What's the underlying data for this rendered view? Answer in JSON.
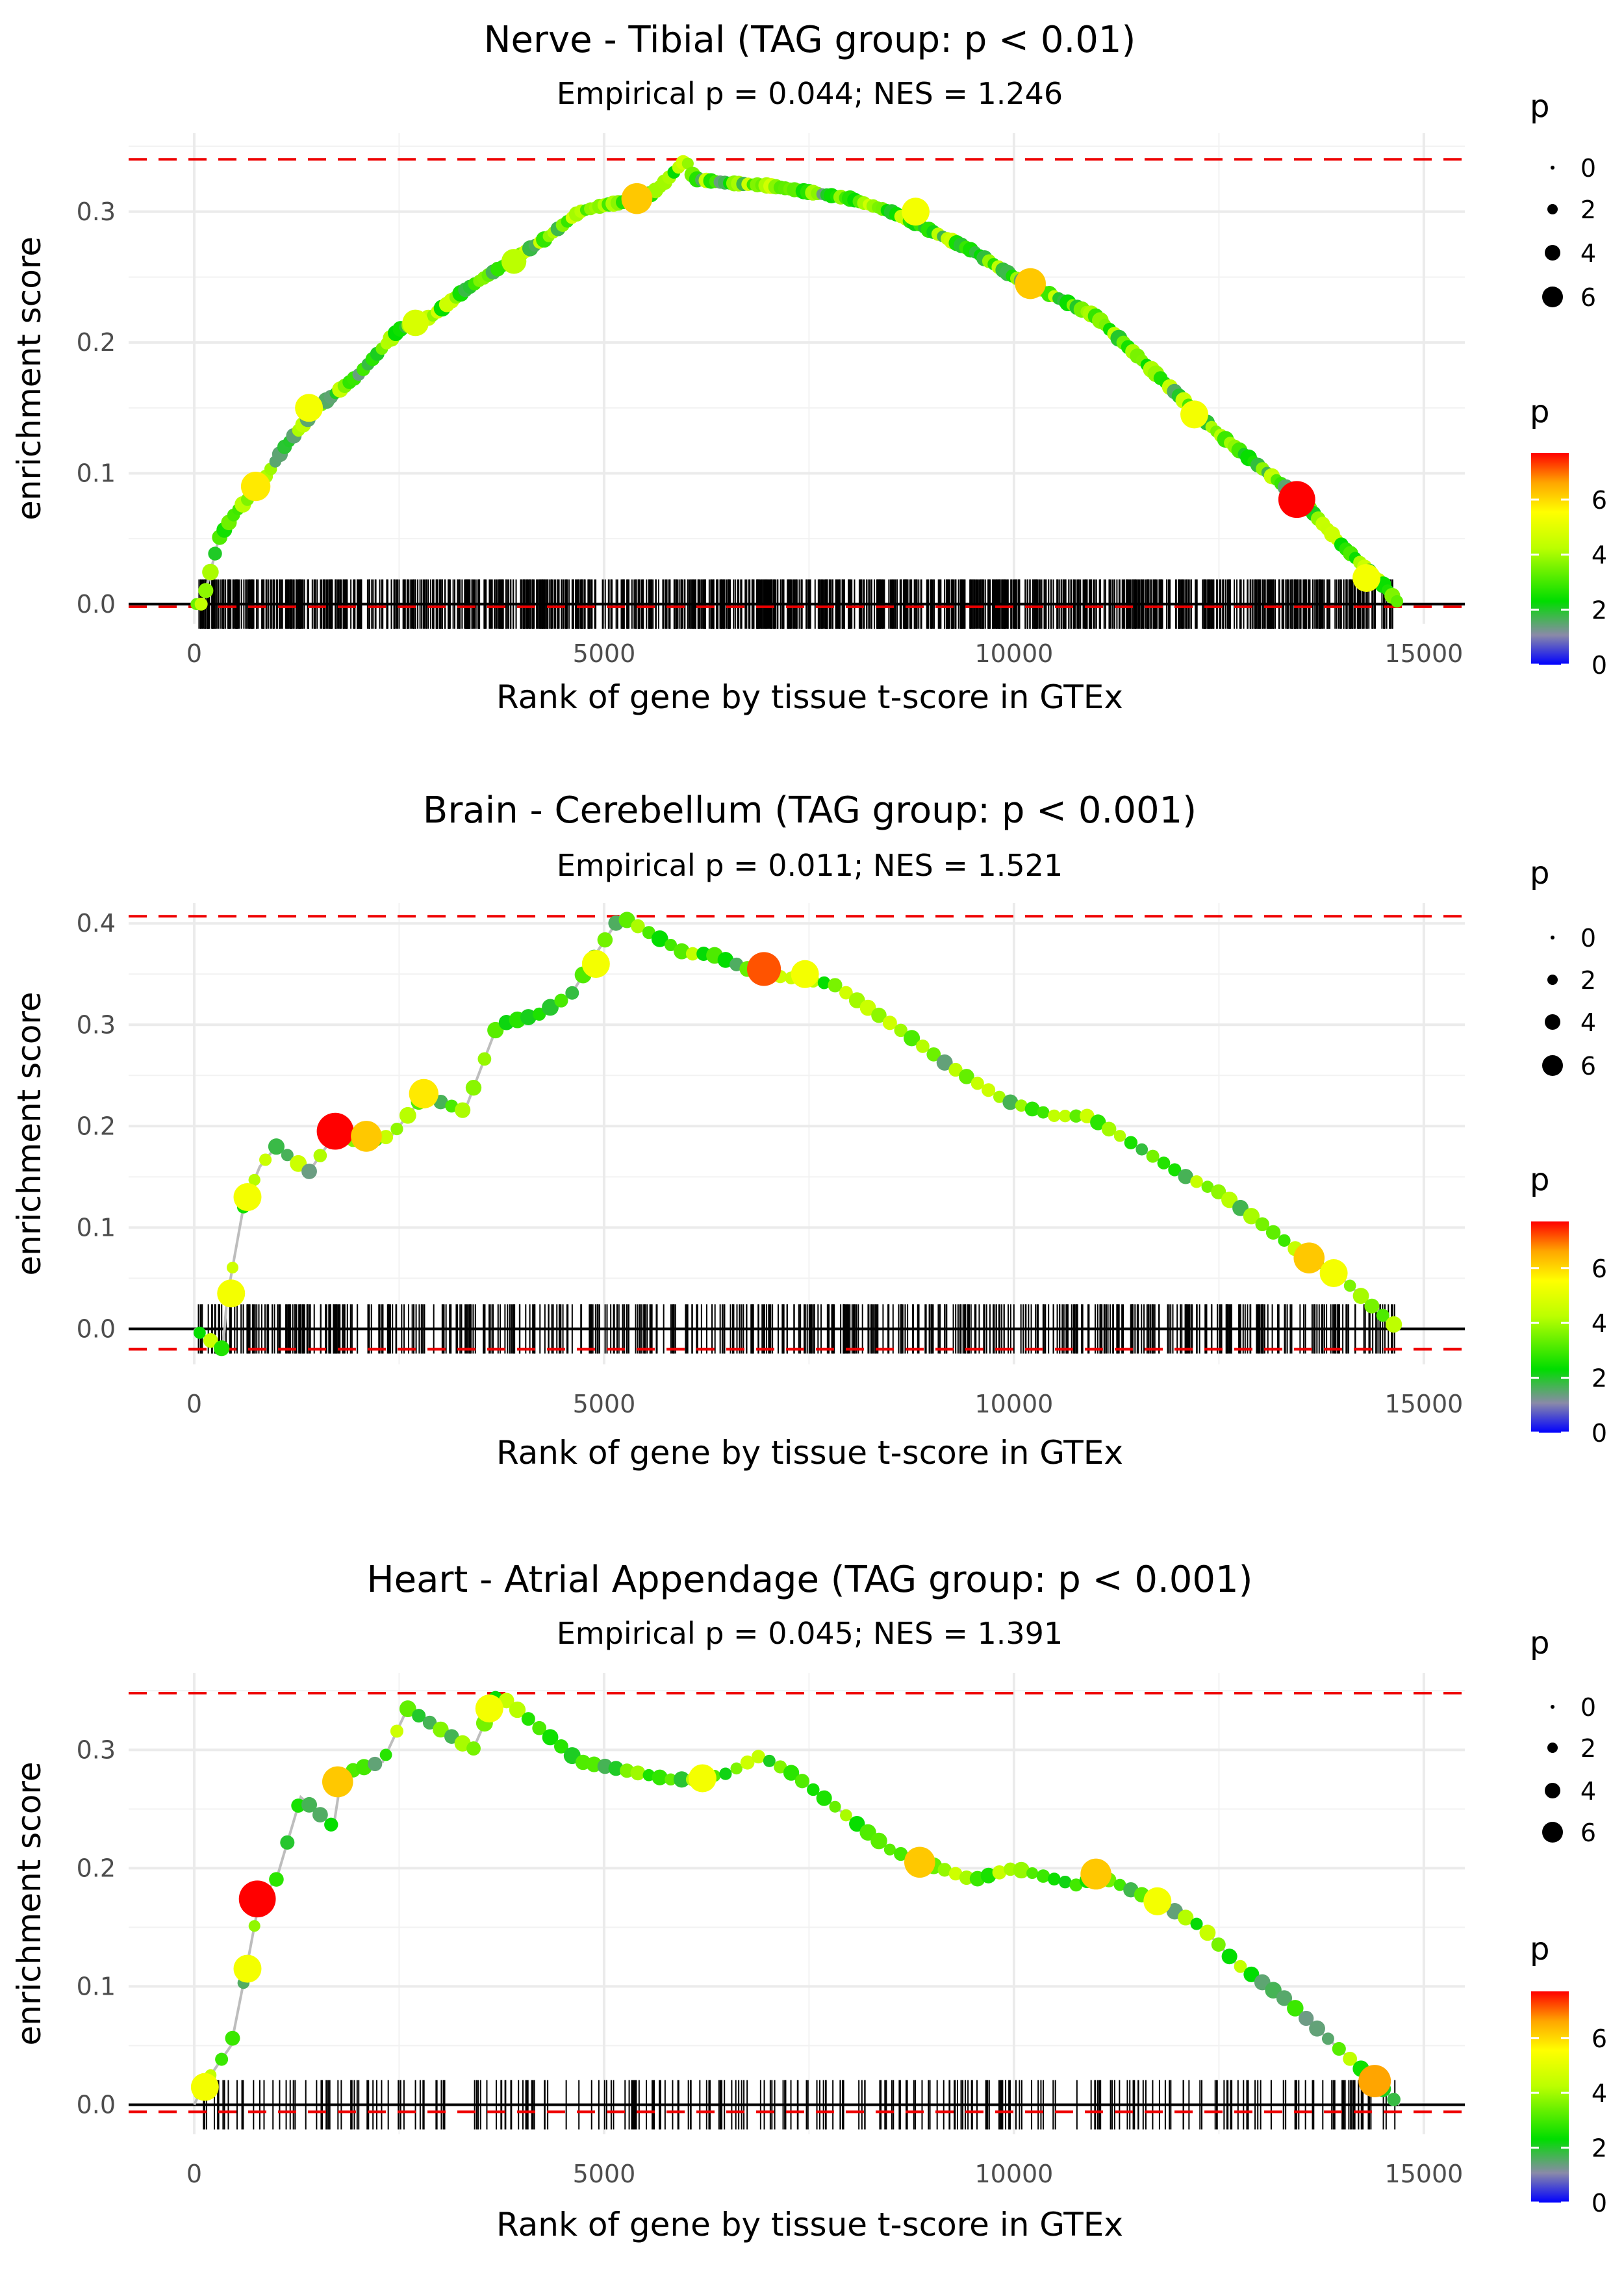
{
  "chart_data": [
    {
      "type": "line",
      "title": "Nerve - Tibial (TAG group: p < 0.01)",
      "subtitle": "Empirical p = 0.044; NES = 1.246",
      "xlabel": "Rank of gene by tissue t-score in GTEx",
      "ylabel": "enrichment score",
      "xlim": [
        -800,
        15500
      ],
      "ylim": [
        -0.015,
        0.36
      ],
      "xticks": [
        0,
        5000,
        10000,
        15000
      ],
      "xtick_labels": [
        "0",
        "5000",
        "10000",
        "15000"
      ],
      "yticks": [
        0.0,
        0.1,
        0.2,
        0.3
      ],
      "ytick_labels": [
        "0.0",
        "0.1",
        "0.2",
        "0.3"
      ],
      "max_es": 0.34,
      "min_es": -0.002,
      "n_genes": 14700,
      "curve": [
        [
          0,
          0
        ],
        [
          100,
          0
        ],
        [
          300,
          0.05
        ],
        [
          500,
          0.07
        ],
        [
          800,
          0.09
        ],
        [
          1100,
          0.12
        ],
        [
          1500,
          0.15
        ],
        [
          2000,
          0.175
        ],
        [
          2500,
          0.21
        ],
        [
          2900,
          0.22
        ],
        [
          3300,
          0.24
        ],
        [
          3800,
          0.26
        ],
        [
          4300,
          0.28
        ],
        [
          4700,
          0.3
        ],
        [
          5000,
          0.305
        ],
        [
          5500,
          0.31
        ],
        [
          5700,
          0.32
        ],
        [
          6000,
          0.34
        ],
        [
          6100,
          0.325
        ],
        [
          6500,
          0.322
        ],
        [
          7000,
          0.32
        ],
        [
          7500,
          0.315
        ],
        [
          8000,
          0.31
        ],
        [
          8500,
          0.3
        ],
        [
          9000,
          0.285
        ],
        [
          9500,
          0.27
        ],
        [
          10000,
          0.25
        ],
        [
          10500,
          0.235
        ],
        [
          11000,
          0.22
        ],
        [
          11500,
          0.19
        ],
        [
          12000,
          0.16
        ],
        [
          12500,
          0.13
        ],
        [
          13000,
          0.105
        ],
        [
          13500,
          0.08
        ],
        [
          14000,
          0.045
        ],
        [
          14500,
          0.015
        ],
        [
          14700,
          0
        ]
      ],
      "highlight_points": [
        [
          750,
          0.09,
          5.5
        ],
        [
          1400,
          0.15,
          5.0
        ],
        [
          2700,
          0.215,
          4.5
        ],
        [
          3900,
          0.262,
          4.0
        ],
        [
          5400,
          0.31,
          6.0
        ],
        [
          8800,
          0.3,
          5.0
        ],
        [
          10200,
          0.245,
          6.0
        ],
        [
          12200,
          0.145,
          5.0
        ],
        [
          13450,
          0.08,
          8.0
        ],
        [
          14300,
          0.02,
          5.0
        ]
      ],
      "size_legend": {
        "title": "p",
        "labels": [
          "0",
          "2",
          "4",
          "6"
        ]
      },
      "color_legend": {
        "title": "p",
        "labels": [
          "6",
          "4",
          "2",
          "0"
        ]
      }
    },
    {
      "type": "line",
      "title": "Brain - Cerebellum (TAG group: p < 0.001)",
      "subtitle": "Empirical p = 0.011; NES = 1.521",
      "xlabel": "Rank of gene by tissue t-score in GTEx",
      "ylabel": "enrichment score",
      "xlim": [
        -800,
        15500
      ],
      "ylim": [
        -0.035,
        0.42
      ],
      "xticks": [
        0,
        5000,
        10000,
        15000
      ],
      "xtick_labels": [
        "0",
        "5000",
        "10000",
        "15000"
      ],
      "yticks": [
        0.0,
        0.1,
        0.2,
        0.3,
        0.4
      ],
      "ytick_labels": [
        "0.0",
        "0.1",
        "0.2",
        "0.3",
        "0.4"
      ],
      "max_es": 0.407,
      "min_es": -0.02,
      "n_genes": 14700,
      "curve": [
        [
          0,
          0
        ],
        [
          350,
          -0.02
        ],
        [
          400,
          0.03
        ],
        [
          600,
          0.12
        ],
        [
          800,
          0.16
        ],
        [
          1000,
          0.18
        ],
        [
          1400,
          0.155
        ],
        [
          1700,
          0.19
        ],
        [
          2000,
          0.185
        ],
        [
          2400,
          0.19
        ],
        [
          2800,
          0.23
        ],
        [
          3300,
          0.215
        ],
        [
          3700,
          0.3
        ],
        [
          4200,
          0.31
        ],
        [
          4600,
          0.33
        ],
        [
          4900,
          0.37
        ],
        [
          5200,
          0.407
        ],
        [
          6000,
          0.37
        ],
        [
          6300,
          0.37
        ],
        [
          6900,
          0.35
        ],
        [
          7400,
          0.345
        ],
        [
          7800,
          0.34
        ],
        [
          8700,
          0.29
        ],
        [
          9200,
          0.26
        ],
        [
          9900,
          0.225
        ],
        [
          10500,
          0.21
        ],
        [
          10900,
          0.21
        ],
        [
          11500,
          0.18
        ],
        [
          12100,
          0.15
        ],
        [
          12500,
          0.135
        ],
        [
          13500,
          0.075
        ],
        [
          14000,
          0.05
        ],
        [
          14400,
          0.02
        ],
        [
          14700,
          0
        ]
      ],
      "highlight_points": [
        [
          450,
          0.035,
          5.0
        ],
        [
          650,
          0.13,
          5.0
        ],
        [
          1720,
          0.195,
          8.0
        ],
        [
          2100,
          0.19,
          6.0
        ],
        [
          2800,
          0.232,
          5.5
        ],
        [
          4900,
          0.36,
          5.0
        ],
        [
          6950,
          0.355,
          7.0
        ],
        [
          7450,
          0.35,
          5.0
        ],
        [
          13600,
          0.07,
          6.0
        ],
        [
          13900,
          0.055,
          5.0
        ]
      ],
      "size_legend": {
        "title": "p",
        "labels": [
          "0",
          "2",
          "4",
          "6"
        ]
      },
      "color_legend": {
        "title": "p",
        "labels": [
          "6",
          "4",
          "2",
          "0"
        ]
      }
    },
    {
      "type": "line",
      "title": "Heart - Atrial Appendage (TAG group: p < 0.001)",
      "subtitle": "Empirical p = 0.045; NES = 1.391",
      "xlabel": "Rank of gene by tissue t-score in GTEx",
      "ylabel": "enrichment score",
      "xlim": [
        -800,
        15500
      ],
      "ylim": [
        -0.025,
        0.365
      ],
      "xticks": [
        0,
        5000,
        10000,
        15000
      ],
      "xtick_labels": [
        "0",
        "5000",
        "10000",
        "15000"
      ],
      "yticks": [
        0.0,
        0.1,
        0.2,
        0.3
      ],
      "ytick_labels": [
        "0.0",
        "0.1",
        "0.2",
        "0.3"
      ],
      "max_es": 0.348,
      "min_es": -0.006,
      "n_genes": 14700,
      "curve": [
        [
          0,
          0
        ],
        [
          100,
          0.015
        ],
        [
          250,
          0.03
        ],
        [
          450,
          0.05
        ],
        [
          650,
          0.12
        ],
        [
          800,
          0.175
        ],
        [
          1000,
          0.19
        ],
        [
          1300,
          0.26
        ],
        [
          1700,
          0.235
        ],
        [
          1800,
          0.28
        ],
        [
          2300,
          0.29
        ],
        [
          2600,
          0.335
        ],
        [
          3400,
          0.3
        ],
        [
          3700,
          0.348
        ],
        [
          4700,
          0.29
        ],
        [
          5100,
          0.285
        ],
        [
          5800,
          0.275
        ],
        [
          6100,
          0.275
        ],
        [
          6500,
          0.28
        ],
        [
          6900,
          0.295
        ],
        [
          7300,
          0.28
        ],
        [
          8500,
          0.215
        ],
        [
          8900,
          0.205
        ],
        [
          9500,
          0.19
        ],
        [
          10000,
          0.2
        ],
        [
          10800,
          0.185
        ],
        [
          11000,
          0.195
        ],
        [
          11800,
          0.17
        ],
        [
          12300,
          0.15
        ],
        [
          12700,
          0.12
        ],
        [
          13300,
          0.09
        ],
        [
          14000,
          0.045
        ],
        [
          14400,
          0.02
        ],
        [
          14700,
          0
        ]
      ],
      "highlight_points": [
        [
          130,
          0.015,
          5.0
        ],
        [
          650,
          0.115,
          5.0
        ],
        [
          770,
          0.174,
          8.0
        ],
        [
          1750,
          0.273,
          6.0
        ],
        [
          3600,
          0.335,
          5.0
        ],
        [
          6200,
          0.276,
          5.0
        ],
        [
          8850,
          0.205,
          6.0
        ],
        [
          11000,
          0.195,
          6.0
        ],
        [
          11750,
          0.172,
          5.0
        ],
        [
          14400,
          0.02,
          6.5
        ]
      ],
      "size_legend": {
        "title": "p",
        "labels": [
          "0",
          "2",
          "4",
          "6"
        ]
      },
      "color_legend": {
        "title": "p",
        "labels": [
          "6",
          "4",
          "2",
          "0"
        ]
      }
    }
  ]
}
